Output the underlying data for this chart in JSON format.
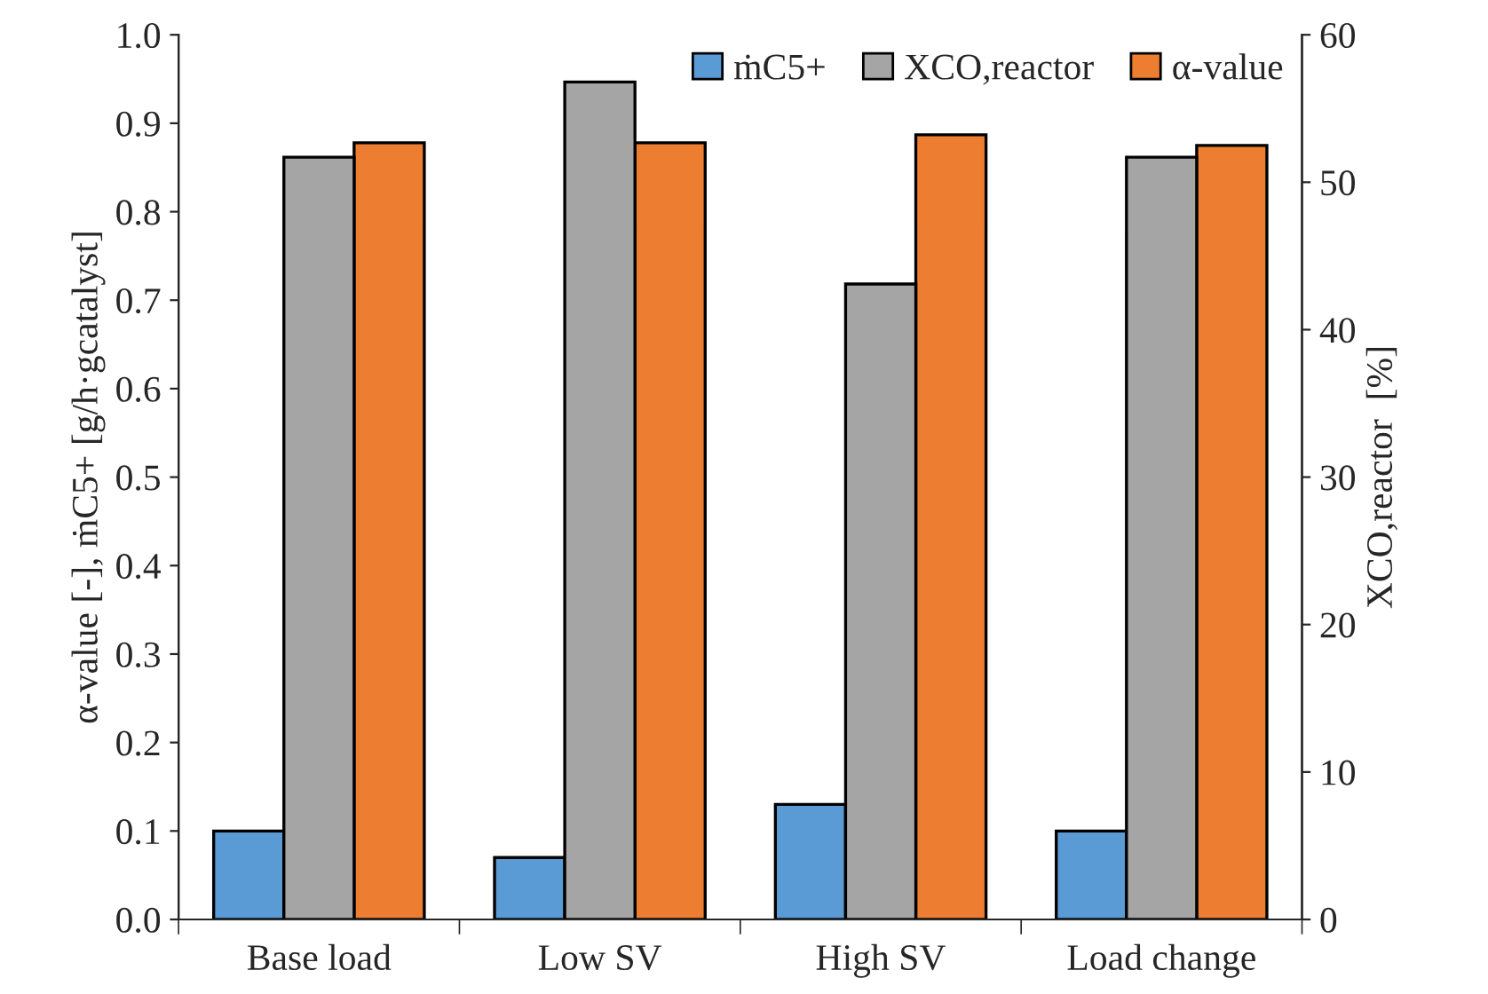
{
  "chart_data": {
    "type": "bar",
    "categories": [
      "Base load",
      "Low SV",
      "High SV",
      "Load change"
    ],
    "ylabel": "α-value [-], ṁC5+ [g/h·gcatalyst]",
    "y2label": "XCO,reactor  [%]",
    "ylim": [
      0,
      1.0
    ],
    "yticks": [
      {
        "value": 0,
        "label": "0.0"
      },
      0.1,
      0.2,
      0.3,
      0.4,
      0.5,
      0.6,
      0.7,
      0.8,
      0.9,
      {
        "value": 1.0,
        "label": "1.0"
      }
    ],
    "y2lim": [
      0,
      60
    ],
    "y2ticks": [
      0,
      10,
      20,
      30,
      40,
      50,
      60
    ],
    "legend": "top right",
    "grid": false,
    "series": [
      {
        "name": "ṁC5+",
        "color": "#5b9bd5",
        "values": [
          0.1,
          0.07,
          0.13,
          0.1
        ]
      },
      {
        "name": "XCO,reactor",
        "color": "#a5a5a5",
        "axis": "y2",
        "values": [
          51.7,
          56.8,
          43.1,
          51.7
        ]
      },
      {
        "name": "α-value",
        "color": "#ed7d31",
        "values": [
          0.878,
          0.878,
          0.887,
          0.875
        ]
      }
    ]
  }
}
